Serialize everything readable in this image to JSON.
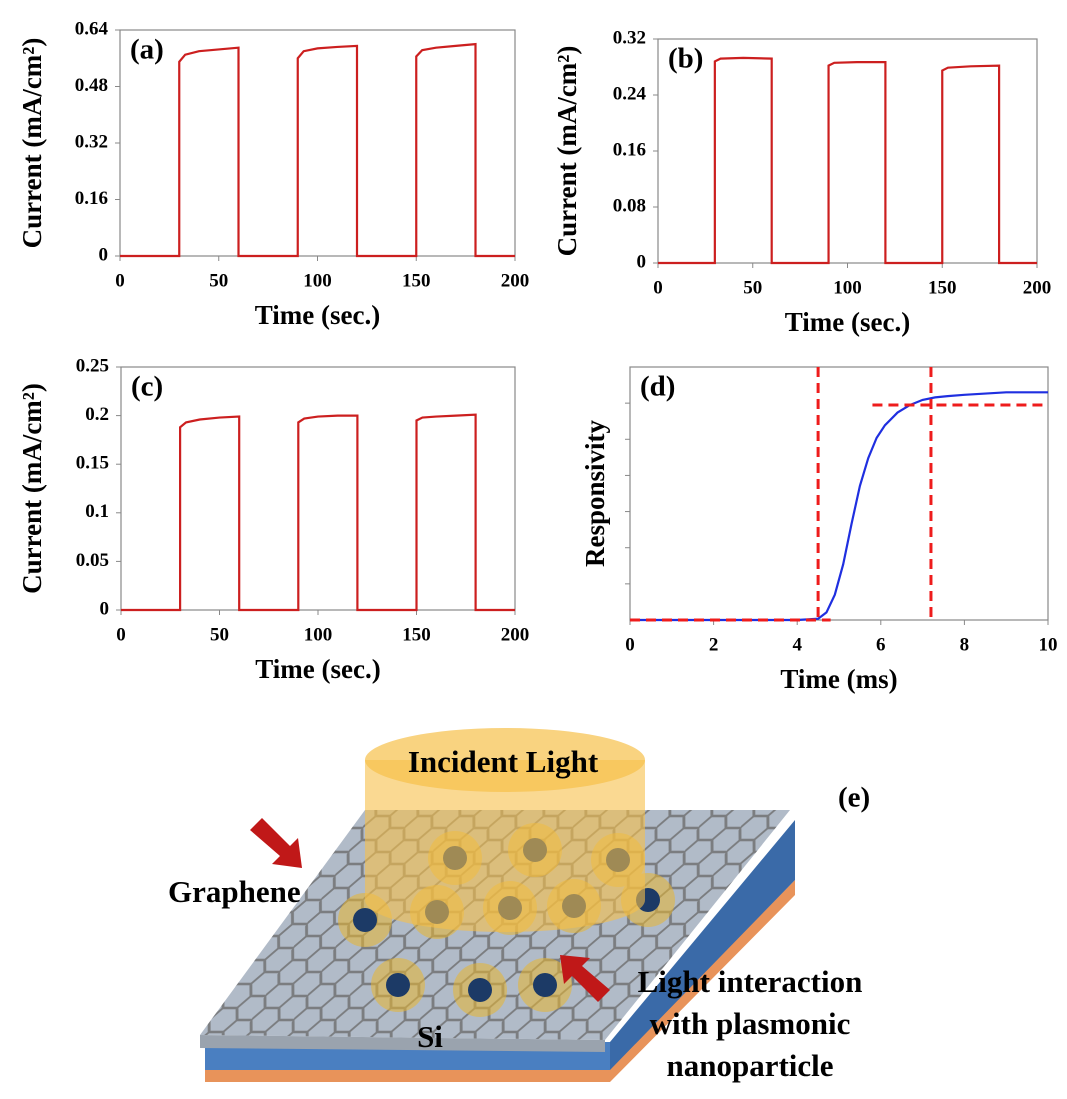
{
  "chart_data": [
    {
      "type": "line",
      "label": "(a)",
      "xlabel": "Time (sec.)",
      "ylabel": "Current (mA/cm²)",
      "color": "#cc1f1f",
      "xlim": [
        0,
        200
      ],
      "xticks": [
        0,
        50,
        100,
        150,
        200
      ],
      "ylim": [
        0,
        0.64
      ],
      "yticks": [
        0,
        0.16,
        0.32,
        0.48,
        0.64
      ],
      "x": [
        0,
        30,
        30,
        33,
        40,
        50,
        60,
        60,
        90,
        90,
        93,
        100,
        110,
        120,
        120,
        150,
        150,
        153,
        160,
        170,
        180,
        180,
        200
      ],
      "values": [
        0,
        0,
        0.55,
        0.57,
        0.58,
        0.585,
        0.59,
        0,
        0,
        0.56,
        0.58,
        0.588,
        0.592,
        0.595,
        0,
        0,
        0.565,
        0.583,
        0.59,
        0.595,
        0.6,
        0,
        0
      ]
    },
    {
      "type": "line",
      "label": "(b)",
      "xlabel": "Time (sec.)",
      "ylabel": "Current (mA/cm²)",
      "color": "#cc1f1f",
      "xlim": [
        0,
        200
      ],
      "xticks": [
        0,
        50,
        100,
        150,
        200
      ],
      "ylim": [
        0,
        0.32
      ],
      "yticks": [
        0,
        0.08,
        0.16,
        0.24,
        0.32
      ],
      "x": [
        0,
        30,
        30,
        33,
        45,
        60,
        60,
        90,
        90,
        93,
        105,
        120,
        120,
        150,
        150,
        153,
        165,
        180,
        180,
        200
      ],
      "values": [
        0,
        0,
        0.288,
        0.292,
        0.293,
        0.292,
        0,
        0,
        0.282,
        0.286,
        0.287,
        0.287,
        0,
        0,
        0.275,
        0.279,
        0.281,
        0.282,
        0,
        0
      ]
    },
    {
      "type": "line",
      "label": "(c)",
      "xlabel": "Time (sec.)",
      "ylabel": "Current (mA/cm²)",
      "color": "#cc1f1f",
      "xlim": [
        0,
        200
      ],
      "xticks": [
        0,
        50,
        100,
        150,
        200
      ],
      "ylim": [
        0,
        0.25
      ],
      "yticks": [
        0,
        0.05,
        0.1,
        0.15,
        0.2,
        0.25
      ],
      "x": [
        0,
        30,
        30,
        33,
        40,
        50,
        60,
        60,
        90,
        90,
        93,
        100,
        110,
        120,
        120,
        150,
        150,
        153,
        160,
        170,
        180,
        180,
        200
      ],
      "values": [
        0,
        0,
        0.188,
        0.193,
        0.196,
        0.198,
        0.199,
        0,
        0,
        0.193,
        0.197,
        0.199,
        0.2,
        0.2,
        0,
        0,
        0.195,
        0.198,
        0.199,
        0.2,
        0.201,
        0,
        0
      ]
    },
    {
      "type": "line",
      "label": "(d)",
      "xlabel": "Time (ms)",
      "ylabel": "Responsivity",
      "color": "#1f2fe0",
      "xlim": [
        0,
        10
      ],
      "xticks": [
        0,
        2,
        4,
        6,
        8,
        10
      ],
      "ylim": [
        0,
        1
      ],
      "x": [
        0,
        1,
        2,
        3,
        4,
        4.5,
        4.7,
        4.9,
        5.1,
        5.3,
        5.5,
        5.7,
        5.9,
        6.1,
        6.4,
        6.7,
        7.0,
        7.3,
        7.6,
        8,
        8.5,
        9,
        9.5,
        10
      ],
      "values": [
        0,
        0,
        0,
        0,
        0,
        0.005,
        0.03,
        0.1,
        0.22,
        0.38,
        0.53,
        0.64,
        0.72,
        0.77,
        0.82,
        0.85,
        0.87,
        0.88,
        0.885,
        0.89,
        0.895,
        0.9,
        0.9,
        0.9
      ],
      "vlines": [
        4.5,
        7.2
      ],
      "hlines": [
        {
          "y": 0,
          "x": [
            0,
            4.8
          ]
        },
        {
          "y": 0.85,
          "x": [
            5.8,
            10
          ]
        }
      ],
      "ref_color": "#ee1c1c"
    }
  ],
  "diagram": {
    "label": "(e)",
    "light": "Incident  Light",
    "graphene": "Graphene",
    "substrate": "Si",
    "note": [
      "Light interaction",
      "with plasmonic",
      "nanoparticle"
    ]
  }
}
